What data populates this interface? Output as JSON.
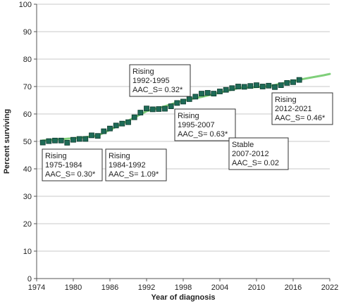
{
  "chart_data": {
    "type": "scatter",
    "xlabel": "Year of diagnosis",
    "ylabel": "Percent surviving",
    "xlim": [
      1974,
      2022
    ],
    "ylim": [
      0,
      100
    ],
    "x_ticks": [
      1974,
      1980,
      1986,
      1992,
      1998,
      2004,
      2010,
      2016,
      2022
    ],
    "y_ticks": [
      0,
      10,
      20,
      30,
      40,
      50,
      60,
      70,
      80,
      90,
      100
    ],
    "grid": "horizontal",
    "colors": {
      "marker_fill": "#1e6b57",
      "marker_edge": "#0d3a2c",
      "trend_line": "#7fcf7a",
      "grid": "#c8c8c8",
      "axis": "#555555"
    },
    "observed": {
      "x": [
        1975,
        1976,
        1977,
        1978,
        1979,
        1980,
        1981,
        1982,
        1983,
        1984,
        1985,
        1986,
        1987,
        1988,
        1989,
        1990,
        1991,
        1992,
        1993,
        1994,
        1995,
        1996,
        1997,
        1998,
        1999,
        2000,
        2001,
        2002,
        2003,
        2004,
        2005,
        2006,
        2007,
        2008,
        2009,
        2010,
        2011,
        2012,
        2013,
        2014,
        2015,
        2016,
        2017
      ],
      "y": [
        49.6,
        50.1,
        50.3,
        50.3,
        49.5,
        50.6,
        50.9,
        50.9,
        52.2,
        52.0,
        53.7,
        54.7,
        55.8,
        56.5,
        57.0,
        58.8,
        60.5,
        62.0,
        61.7,
        61.8,
        61.9,
        62.8,
        64.0,
        64.5,
        65.4,
        66.3,
        67.4,
        67.7,
        67.4,
        68.2,
        68.8,
        69.4,
        70.0,
        69.9,
        70.2,
        70.5,
        70.0,
        70.3,
        69.8,
        70.5,
        71.3,
        71.6,
        72.4
      ]
    },
    "trend": {
      "x": [
        1975,
        1978,
        1981,
        1984,
        1986,
        1988,
        1990,
        1992,
        1995,
        1998,
        2001,
        2004,
        2007,
        2010,
        2012,
        2015,
        2018,
        2021,
        2022
      ],
      "y": [
        50.3,
        50.8,
        51.3,
        52.1,
        54.2,
        56.4,
        58.7,
        61.0,
        62.8,
        64.9,
        66.2,
        67.8,
        69.4,
        69.8,
        70.1,
        71.5,
        72.9,
        74.1,
        74.6
      ]
    },
    "annotations": [
      {
        "lines": [
          "Rising",
          "1975-1984",
          "AAC_S=  0.30*"
        ]
      },
      {
        "lines": [
          "Rising",
          "1984-1992",
          "AAC_S=  1.09*"
        ]
      },
      {
        "lines": [
          "Rising",
          "1992-1995",
          "AAC_S=  0.32*"
        ]
      },
      {
        "lines": [
          "Rising",
          "1995-2007",
          "AAC_S=  0.63*"
        ]
      },
      {
        "lines": [
          "Stable",
          "2007-2012",
          "AAC_S=  0.02"
        ]
      },
      {
        "lines": [
          "Rising",
          "2012-2021",
          "AAC_S=  0.46*"
        ]
      }
    ]
  }
}
